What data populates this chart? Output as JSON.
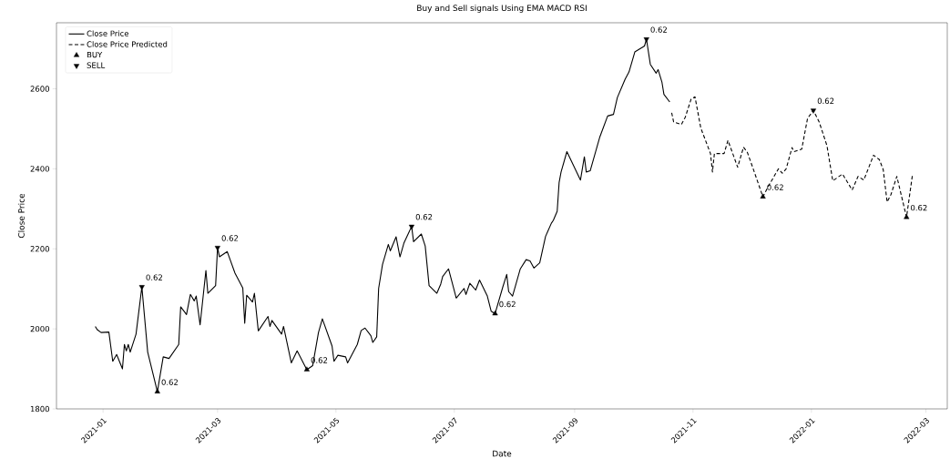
{
  "chart_data": {
    "type": "line",
    "title": "Buy and Sell signals Using EMA MACD RSI",
    "xlabel": "Date",
    "ylabel": "Close Price",
    "xlim": [
      "2020-12-08",
      "2022-03-12"
    ],
    "ylim": [
      1800,
      2765
    ],
    "xticks": [
      {
        "value": "2021-01",
        "label": "2021-01"
      },
      {
        "value": "2021-03",
        "label": "2021-03"
      },
      {
        "value": "2021-05",
        "label": "2021-05"
      },
      {
        "value": "2021-07",
        "label": "2021-07"
      },
      {
        "value": "2021-09",
        "label": "2021-09"
      },
      {
        "value": "2021-11",
        "label": "2021-11"
      },
      {
        "value": "2022-01",
        "label": "2022-01"
      },
      {
        "value": "2022-03",
        "label": "2022-03"
      }
    ],
    "yticks": [
      1800,
      2000,
      2200,
      2400,
      2600
    ],
    "legend": "top left",
    "series": [
      {
        "name": "Close Price",
        "color": "#000000",
        "line_style": "solid",
        "marker": "none",
        "x": [
          "2020-12-28",
          "2020-12-29",
          "2020-12-31",
          "2021-01-04",
          "2021-01-06",
          "2021-01-08",
          "2021-01-11",
          "2021-01-12",
          "2021-01-13",
          "2021-01-14",
          "2021-01-15",
          "2021-01-18",
          "2021-01-21",
          "2021-01-24",
          "2021-01-29",
          "2021-02-01",
          "2021-02-04",
          "2021-02-09",
          "2021-02-10",
          "2021-02-13",
          "2021-02-15",
          "2021-02-17",
          "2021-02-18",
          "2021-02-20",
          "2021-02-23",
          "2021-02-24",
          "2021-02-28",
          "2021-03-01",
          "2021-03-02",
          "2021-03-06",
          "2021-03-10",
          "2021-03-14",
          "2021-03-15",
          "2021-03-16",
          "2021-03-19",
          "2021-03-20",
          "2021-03-22",
          "2021-03-27",
          "2021-03-28",
          "2021-03-29",
          "2021-04-03",
          "2021-04-04",
          "2021-04-08",
          "2021-04-11",
          "2021-04-16",
          "2021-04-19",
          "2021-04-22",
          "2021-04-24",
          "2021-04-29",
          "2021-04-30",
          "2021-05-02",
          "2021-05-06",
          "2021-05-07",
          "2021-05-12",
          "2021-05-14",
          "2021-05-16",
          "2021-05-19",
          "2021-05-20",
          "2021-05-22",
          "2021-05-23",
          "2021-05-25",
          "2021-05-28",
          "2021-05-29",
          "2021-06-01",
          "2021-06-03",
          "2021-06-05",
          "2021-06-09",
          "2021-06-10",
          "2021-06-14",
          "2021-06-16",
          "2021-06-18",
          "2021-06-22",
          "2021-06-24",
          "2021-06-25",
          "2021-06-28",
          "2021-07-02",
          "2021-07-06",
          "2021-07-07",
          "2021-07-09",
          "2021-07-12",
          "2021-07-14",
          "2021-07-18",
          "2021-07-20",
          "2021-07-22",
          "2021-07-26",
          "2021-07-28",
          "2021-07-29",
          "2021-07-31",
          "2021-08-02",
          "2021-08-04",
          "2021-08-07",
          "2021-08-09",
          "2021-08-11",
          "2021-08-14",
          "2021-08-17",
          "2021-08-20",
          "2021-08-21",
          "2021-08-23",
          "2021-08-24",
          "2021-08-25",
          "2021-08-28",
          "2021-09-04",
          "2021-09-06",
          "2021-09-07",
          "2021-09-09",
          "2021-09-14",
          "2021-09-18",
          "2021-09-21",
          "2021-09-23",
          "2021-09-27",
          "2021-09-29",
          "2021-10-02",
          "2021-10-07",
          "2021-10-08",
          "2021-10-10",
          "2021-10-13",
          "2021-10-14",
          "2021-10-16",
          "2021-10-17",
          "2021-10-20"
        ],
        "values": [
          2006,
          1998,
          1991,
          1992,
          1919,
          1936,
          1900,
          1961,
          1945,
          1961,
          1942,
          1987,
          2105,
          1942,
          1843,
          1930,
          1926,
          1961,
          2055,
          2036,
          2086,
          2070,
          2082,
          2010,
          2146,
          2089,
          2108,
          2203,
          2180,
          2193,
          2139,
          2102,
          2014,
          2084,
          2067,
          2089,
          1995,
          2031,
          2006,
          2021,
          1987,
          2006,
          1915,
          1945,
          1898,
          1908,
          1991,
          2025,
          1957,
          1919,
          1934,
          1930,
          1915,
          1961,
          1996,
          2002,
          1983,
          1966,
          1980,
          2101,
          2161,
          2211,
          2195,
          2230,
          2180,
          2214,
          2256,
          2218,
          2237,
          2207,
          2108,
          2089,
          2112,
          2131,
          2150,
          2077,
          2101,
          2086,
          2114,
          2097,
          2122,
          2082,
          2044,
          2038,
          2105,
          2136,
          2093,
          2082,
          2116,
          2150,
          2173,
          2170,
          2152,
          2165,
          2231,
          2264,
          2271,
          2294,
          2366,
          2392,
          2443,
          2372,
          2430,
          2392,
          2395,
          2480,
          2532,
          2536,
          2578,
          2624,
          2642,
          2692,
          2707,
          2724,
          2661,
          2639,
          2648,
          2616,
          2586,
          2567
        ]
      },
      {
        "name": "Close Price Predicted",
        "color": "#000000",
        "line_style": "dashed",
        "marker": "none",
        "x": [
          "2021-10-21",
          "2021-10-22",
          "2021-10-26",
          "2021-10-28",
          "2021-10-31",
          "2021-11-02",
          "2021-11-05",
          "2021-11-10",
          "2021-11-11",
          "2021-11-12",
          "2021-11-17",
          "2021-11-19",
          "2021-11-24",
          "2021-11-27",
          "2021-11-29",
          "2021-12-02",
          "2021-12-07",
          "2021-12-10",
          "2021-12-15",
          "2021-12-17",
          "2021-12-19",
          "2021-12-22",
          "2021-12-23",
          "2021-12-27",
          "2021-12-30",
          "2022-01-02",
          "2022-01-05",
          "2022-01-09",
          "2022-01-12",
          "2022-01-17",
          "2022-01-22",
          "2022-01-25",
          "2022-01-28",
          "2022-02-02",
          "2022-02-05",
          "2022-02-07",
          "2022-02-09",
          "2022-02-11",
          "2022-02-14",
          "2022-02-19",
          "2022-02-22"
        ],
        "values": [
          2540,
          2517,
          2511,
          2529,
          2574,
          2580,
          2502,
          2438,
          2392,
          2438,
          2438,
          2471,
          2404,
          2454,
          2441,
          2400,
          2330,
          2358,
          2400,
          2389,
          2400,
          2453,
          2443,
          2449,
          2526,
          2546,
          2517,
          2458,
          2370,
          2387,
          2347,
          2381,
          2372,
          2434,
          2423,
          2398,
          2317,
          2336,
          2381,
          2279,
          2383
        ]
      },
      {
        "name": "BUY",
        "type": "scatter",
        "color": "#000000",
        "marker": "triangle",
        "x": [
          "2021-01-29",
          "2021-04-16",
          "2021-07-22",
          "2021-12-07",
          "2022-02-19"
        ],
        "values": [
          1843,
          1898,
          2038,
          2330,
          2279
        ]
      },
      {
        "name": "SELL",
        "type": "scatter",
        "color": "#000000",
        "marker": "triangle-down",
        "x": [
          "2021-01-21",
          "2021-03-01",
          "2021-06-09",
          "2021-10-08",
          "2022-01-02"
        ],
        "values": [
          2105,
          2203,
          2256,
          2724,
          2546
        ]
      }
    ],
    "annotations": [
      {
        "text": "0.62",
        "x": "2021-01-21",
        "y": 2105
      },
      {
        "text": "0.62",
        "x": "2021-01-29",
        "y": 1843
      },
      {
        "text": "0.62",
        "x": "2021-03-01",
        "y": 2203
      },
      {
        "text": "0.62",
        "x": "2021-04-16",
        "y": 1898
      },
      {
        "text": "0.62",
        "x": "2021-06-09",
        "y": 2256
      },
      {
        "text": "0.62",
        "x": "2021-07-22",
        "y": 2038
      },
      {
        "text": "0.62",
        "x": "2021-10-08",
        "y": 2724
      },
      {
        "text": "0.62",
        "x": "2021-12-07",
        "y": 2330
      },
      {
        "text": "0.62",
        "x": "2022-01-02",
        "y": 2546
      },
      {
        "text": "0.62",
        "x": "2022-02-19",
        "y": 2279
      }
    ]
  }
}
